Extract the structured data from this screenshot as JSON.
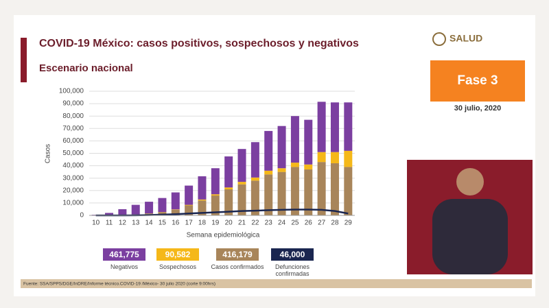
{
  "header": {
    "logo": "SALUD",
    "phase": "Fase 3",
    "date": "30 julio, 2020"
  },
  "footer": {
    "source": "Fuente: SSA/SPPS/DGE/InDRE/Informe técnico.COVID-19 /México- 30 julio 2020 (corte 9:00hrs)"
  },
  "chart_data": {
    "type": "bar",
    "stacked": true,
    "title": "COVID-19 México: casos positivos, sospechosos y negativos",
    "subtitle": "Escenario nacional",
    "ylabel": "Casos",
    "xlabel": "Semana epidemiológica",
    "categories": [
      "10",
      "11",
      "12",
      "13",
      "14",
      "15",
      "16",
      "17",
      "18",
      "19",
      "20",
      "21",
      "22",
      "23",
      "24",
      "25",
      "26",
      "27",
      "28",
      "29"
    ],
    "ylim": [
      0,
      100000
    ],
    "yticks": [
      0,
      {
        "value": 10000,
        "label": "10,000"
      },
      {
        "value": 20000,
        "label": "20,000"
      },
      {
        "value": 30000,
        "label": "30,000"
      },
      {
        "value": 40000,
        "label": "40,000"
      },
      {
        "value": 50000,
        "label": "50,000"
      },
      {
        "value": 60000,
        "label": "60,000"
      },
      {
        "value": 70000,
        "label": "70,000"
      },
      {
        "value": 80000,
        "label": "80,000"
      },
      {
        "value": 90000,
        "label": "90,000"
      },
      {
        "value": 100000,
        "label": "100,000"
      }
    ],
    "grid": true,
    "series": [
      {
        "name": "Casos confirmados",
        "total": "416,179",
        "color": "#a8855a",
        "values": [
          0,
          100,
          300,
          600,
          1500,
          2500,
          4500,
          8000,
          12000,
          16000,
          21000,
          25000,
          28000,
          33000,
          35000,
          39000,
          37000,
          43000,
          42000,
          39000
        ]
      },
      {
        "name": "Sospechosos",
        "total": "90,582",
        "color": "#f5b819",
        "values": [
          0,
          0,
          100,
          100,
          100,
          200,
          300,
          500,
          800,
          1000,
          1500,
          2000,
          2500,
          3000,
          3000,
          3500,
          4000,
          8000,
          9000,
          13000
        ]
      },
      {
        "name": "Negativos",
        "total": "461,775",
        "color": "#7b3fa0",
        "values": [
          500,
          1900,
          4600,
          7800,
          9400,
          11300,
          13700,
          15500,
          18700,
          21000,
          25000,
          26500,
          28500,
          32000,
          34000,
          37500,
          36000,
          40500,
          40000,
          39000
        ]
      },
      {
        "name": "Defunciones confirmadas",
        "total": "46,000",
        "color": "#1a2650",
        "type": "line",
        "values": [
          0,
          0,
          0,
          100,
          300,
          600,
          1000,
          1500,
          2000,
          2500,
          3000,
          3500,
          3800,
          4200,
          4500,
          4700,
          4700,
          4500,
          3500,
          1500
        ]
      }
    ]
  }
}
